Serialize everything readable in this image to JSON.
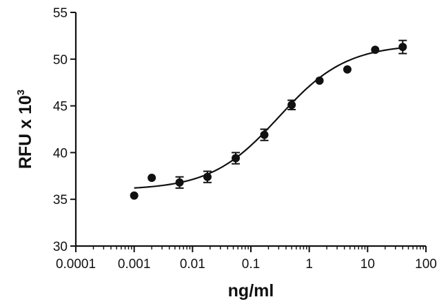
{
  "chart_data": {
    "type": "scatter",
    "title": "",
    "xlabel": "ng/ml",
    "ylabel_base": "RFU x 10",
    "ylabel_exponent": "3",
    "xscale": "log",
    "xlim": [
      0.0001,
      100
    ],
    "ylim": [
      30,
      55
    ],
    "x_ticks": [
      0.0001,
      0.001,
      0.01,
      0.1,
      1,
      10,
      100
    ],
    "x_tick_labels": [
      "0.0001",
      "0.001",
      "0.01",
      "0.1",
      "1",
      "10",
      "100"
    ],
    "y_ticks": [
      30,
      35,
      40,
      45,
      50,
      55
    ],
    "y_tick_labels": [
      "30",
      "35",
      "40",
      "45",
      "50",
      "55"
    ],
    "grid": false,
    "legend": "none",
    "series": [
      {
        "x": [
          0.001,
          0.002,
          0.006,
          0.018,
          0.055,
          0.17,
          0.5,
          1.5,
          4.5,
          13.5,
          40
        ],
        "y": [
          35.4,
          37.3,
          36.8,
          37.4,
          39.4,
          41.9,
          45.1,
          47.7,
          48.9,
          51.0,
          51.3
        ],
        "error": [
          0,
          0,
          0.6,
          0.6,
          0.6,
          0.6,
          0.5,
          0,
          0,
          0,
          0.7
        ]
      }
    ],
    "fit_curve": {
      "type": "4PL",
      "bottom": 36.0,
      "top": 51.6,
      "ec50": 0.3,
      "hill": 0.75
    }
  }
}
